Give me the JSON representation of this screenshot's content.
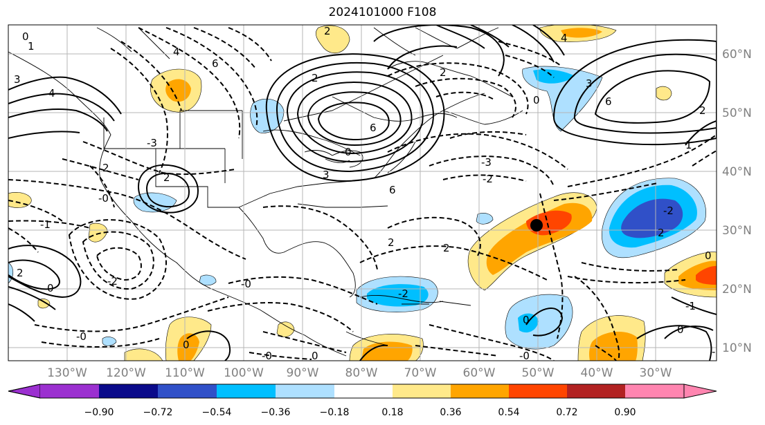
{
  "title": "2024101000 F108",
  "map": {
    "lon_labels": [
      "130°W",
      "120°W",
      "110°W",
      "100°W",
      "90°W",
      "80°W",
      "70°W",
      "60°W",
      "50°W",
      "40°W",
      "30°W"
    ],
    "lat_labels": [
      "60°N",
      "50°N",
      "40°N",
      "30°N",
      "20°N",
      "10°N"
    ],
    "marker": {
      "lon": "50°W",
      "lat": "31°N",
      "color": "#000000"
    },
    "contour_labels": [
      "0",
      "1",
      "3",
      "4",
      "6",
      "2",
      "-3",
      "0",
      "2",
      "4",
      "2",
      "2",
      "3",
      "6",
      "2",
      "6",
      "3",
      "4",
      "6",
      "2",
      "1",
      "0",
      "-3",
      "-2",
      "-2",
      "2",
      "2",
      "2",
      "0",
      "-1",
      "-2",
      "0",
      "0",
      "-1",
      "-0",
      "-0",
      "0",
      "-0",
      "-2",
      "-0",
      "2",
      "0",
      "-1",
      "-0",
      "0"
    ]
  },
  "colorbar": {
    "ticks": [
      "−0.90",
      "−0.72",
      "−0.54",
      "−0.36",
      "−0.18",
      "0.18",
      "0.36",
      "0.54",
      "0.72",
      "0.90"
    ],
    "colors": [
      "#9b30d0",
      "#0a0a8a",
      "#3050c8",
      "#00bfff",
      "#aee0ff",
      "#ffffff",
      "#ffe98a",
      "#ffa500",
      "#ff4500",
      "#b22222",
      "#ff85b0"
    ]
  }
}
